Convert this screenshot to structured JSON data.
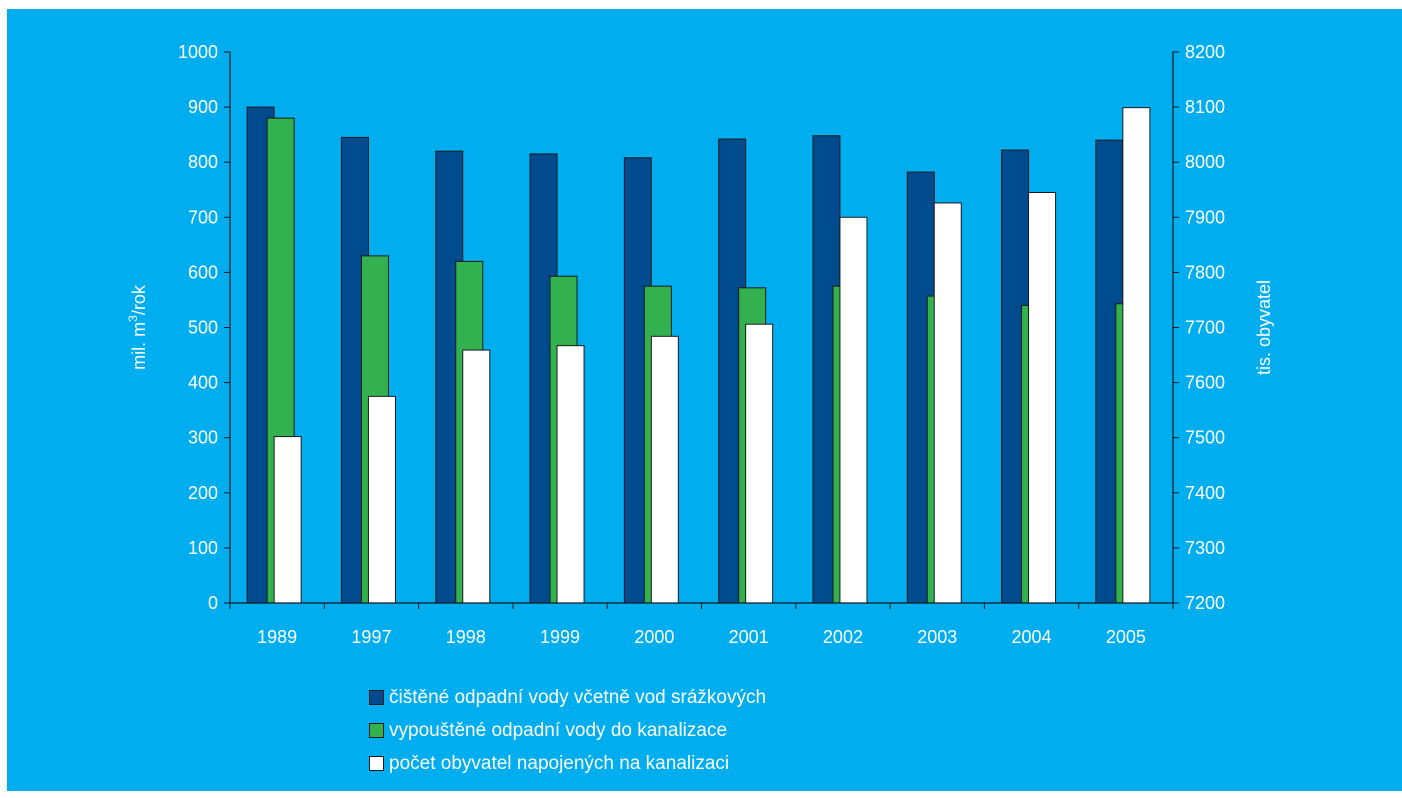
{
  "chart_data": {
    "type": "bar",
    "categories": [
      "1989",
      "1997",
      "1998",
      "1999",
      "2000",
      "2001",
      "2002",
      "2003",
      "2004",
      "2005"
    ],
    "left_axis": {
      "label_main": "mil. m",
      "label_sup": "3",
      "label_tail": "/rok",
      "ylim": [
        0,
        1000
      ],
      "ticks": [
        "0",
        "100",
        "200",
        "300",
        "400",
        "500",
        "600",
        "700",
        "800",
        "900",
        "1000"
      ]
    },
    "right_axis": {
      "label": "tis. obyvatel",
      "ylim": [
        7200,
        8200
      ],
      "ticks": [
        "7200",
        "7300",
        "7400",
        "7500",
        "7600",
        "7700",
        "7800",
        "7900",
        "8000",
        "8100",
        "8200"
      ]
    },
    "series": [
      {
        "name": "čištěné odpadní vody včetně vod srážkových",
        "axis": "left",
        "color": "#004b8d",
        "values": [
          900,
          845,
          820,
          815,
          808,
          842,
          848,
          782,
          822,
          840
        ]
      },
      {
        "name": "vypouštěné odpadní vody do kanalizace",
        "axis": "left",
        "color": "#33b14f",
        "values": [
          880,
          630,
          620,
          593,
          575,
          572,
          575,
          557,
          540,
          543
        ]
      },
      {
        "name": "počet obyvatel napojených na kanalizaci",
        "axis": "right",
        "color": "#ffffff",
        "values": [
          7502,
          7575,
          7659,
          7667,
          7684,
          7706,
          7900,
          7926,
          7945,
          8099
        ]
      }
    ],
    "legend_position": "bottom",
    "grid": false
  }
}
